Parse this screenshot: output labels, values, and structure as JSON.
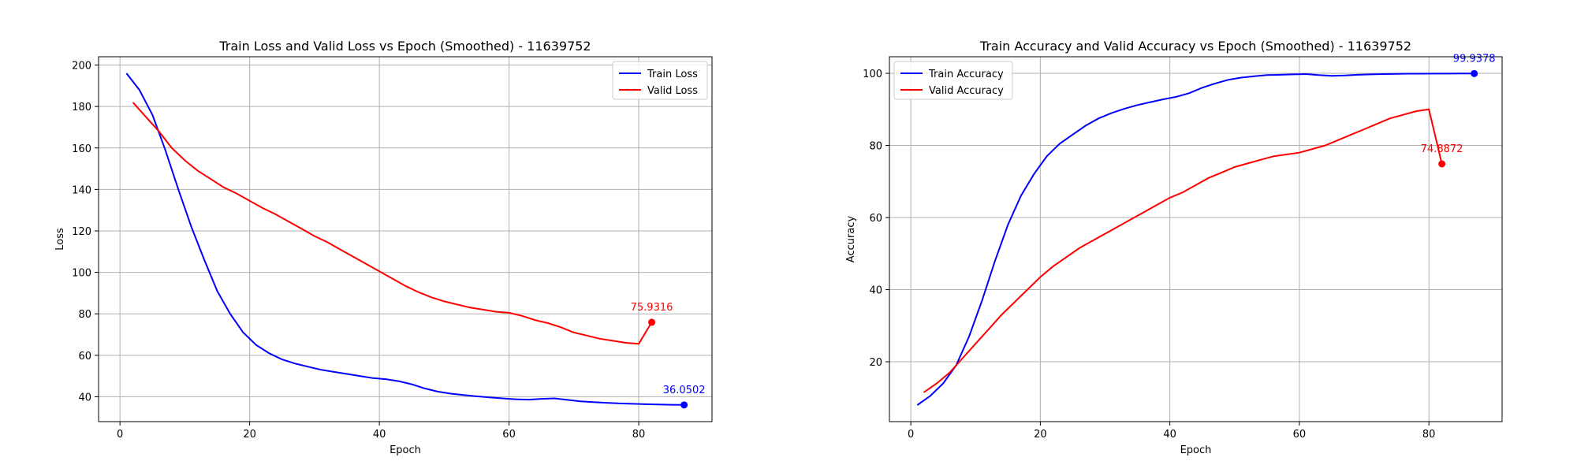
{
  "chart_data": [
    {
      "type": "line",
      "title": "Train Loss and Valid Loss vs Epoch (Smoothed) - 11639752",
      "xlabel": "Epoch",
      "ylabel": "Loss",
      "xlim": [
        -3.3,
        91.3
      ],
      "ylim": [
        28.0,
        204.0
      ],
      "xticks": [
        0,
        20,
        40,
        60,
        80
      ],
      "yticks": [
        40,
        60,
        80,
        100,
        120,
        140,
        160,
        180,
        200
      ],
      "grid": true,
      "legend_position": "top-right",
      "series": [
        {
          "name": "Train Loss",
          "color": "#0000ff",
          "x": [
            1,
            3,
            5,
            7,
            9,
            11,
            13,
            15,
            17,
            19,
            21,
            23,
            25,
            27,
            29,
            31,
            33,
            35,
            37,
            39,
            41,
            43,
            45,
            47,
            49,
            51,
            53,
            55,
            57,
            59,
            61,
            63,
            65,
            67,
            69,
            71,
            73,
            75,
            77,
            79,
            81,
            83,
            85,
            87
          ],
          "y": [
            196,
            188,
            176,
            159,
            140,
            122,
            106,
            91,
            80,
            71,
            65,
            61,
            58,
            56,
            54.5,
            53,
            52,
            51,
            50,
            49,
            48.5,
            47.5,
            46,
            44,
            42.5,
            41.5,
            40.8,
            40.2,
            39.7,
            39.2,
            38.8,
            38.6,
            39.0,
            39.2,
            38.5,
            37.8,
            37.4,
            37.1,
            36.8,
            36.6,
            36.4,
            36.3,
            36.15,
            36.0502
          ],
          "end_label": "36.0502"
        },
        {
          "name": "Valid Loss",
          "color": "#ff0000",
          "x": [
            2,
            4,
            6,
            8,
            10,
            12,
            14,
            16,
            18,
            20,
            22,
            24,
            26,
            28,
            30,
            32,
            34,
            36,
            38,
            40,
            42,
            44,
            46,
            48,
            50,
            52,
            54,
            56,
            58,
            60,
            62,
            64,
            66,
            68,
            70,
            72,
            74,
            76,
            78,
            80,
            82
          ],
          "y": [
            182,
            175,
            168,
            160,
            154,
            149,
            145,
            141,
            138,
            134.5,
            131,
            128,
            124.5,
            121,
            117.5,
            114.5,
            111,
            107.5,
            104,
            100.5,
            97,
            93.5,
            90.5,
            88,
            86,
            84.5,
            83,
            82,
            81,
            80.5,
            79,
            77,
            75.5,
            73.5,
            71,
            69.5,
            68,
            67,
            66,
            65.5,
            75.9316
          ],
          "end_label": "75.9316"
        }
      ]
    },
    {
      "type": "line",
      "title": "Train Accuracy and Valid Accuracy vs Epoch (Smoothed) - 11639752",
      "xlabel": "Epoch",
      "ylabel": "Accuracy",
      "xlim": [
        -3.3,
        91.3
      ],
      "ylim": [
        3.4,
        104.6
      ],
      "xticks": [
        0,
        20,
        40,
        60,
        80
      ],
      "yticks": [
        20,
        40,
        60,
        80,
        100
      ],
      "grid": true,
      "legend_position": "top-left",
      "series": [
        {
          "name": "Train Accuracy",
          "color": "#0000ff",
          "x": [
            1,
            3,
            5,
            7,
            9,
            11,
            13,
            15,
            17,
            19,
            21,
            23,
            25,
            27,
            29,
            31,
            33,
            35,
            37,
            39,
            41,
            43,
            45,
            47,
            49,
            51,
            53,
            55,
            57,
            59,
            61,
            63,
            65,
            67,
            69,
            71,
            73,
            75,
            77,
            79,
            81,
            83,
            85,
            87
          ],
          "y": [
            8,
            10.5,
            14,
            19,
            27,
            37,
            48,
            58,
            66,
            72,
            77,
            80.5,
            83,
            85.5,
            87.5,
            89,
            90.2,
            91.2,
            92,
            92.8,
            93.5,
            94.5,
            96,
            97.2,
            98.2,
            98.8,
            99.2,
            99.5,
            99.6,
            99.7,
            99.8,
            99.5,
            99.3,
            99.4,
            99.6,
            99.7,
            99.8,
            99.85,
            99.9,
            99.9,
            99.92,
            99.93,
            99.935,
            99.9378
          ],
          "end_label": "99.9378"
        },
        {
          "name": "Valid Accuracy",
          "color": "#ff0000",
          "x": [
            2,
            4,
            6,
            8,
            10,
            12,
            14,
            16,
            18,
            20,
            22,
            24,
            26,
            28,
            30,
            32,
            34,
            36,
            38,
            40,
            42,
            44,
            46,
            48,
            50,
            52,
            54,
            56,
            58,
            60,
            62,
            64,
            66,
            68,
            70,
            72,
            74,
            76,
            78,
            80,
            82
          ],
          "y": [
            11.5,
            14,
            17,
            21,
            25,
            29,
            33,
            36.5,
            40,
            43.5,
            46.5,
            49,
            51.5,
            53.5,
            55.5,
            57.5,
            59.5,
            61.5,
            63.5,
            65.5,
            67,
            69,
            71,
            72.5,
            74,
            75,
            76,
            77,
            77.5,
            78,
            79,
            80,
            81.5,
            83,
            84.5,
            86,
            87.5,
            88.5,
            89.5,
            90,
            74.8872
          ],
          "end_label": "74.8872"
        }
      ]
    }
  ]
}
